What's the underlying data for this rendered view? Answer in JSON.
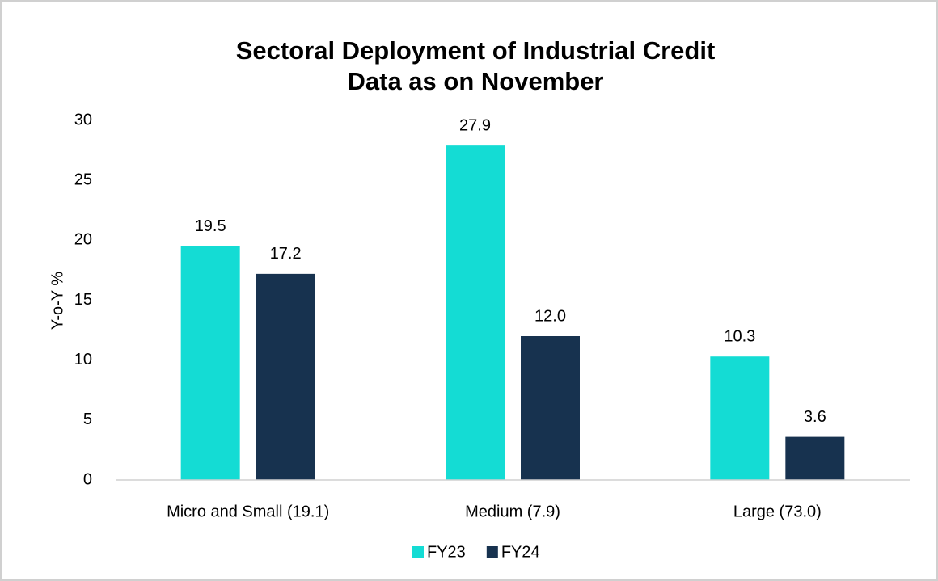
{
  "chart_data": {
    "type": "bar",
    "title": [
      "Sectoral Deployment of Industrial Credit",
      "Data as on November"
    ],
    "y_label": "Y-o-Y %",
    "categories": [
      "Micro and Small (19.1)",
      "Medium (7.9)",
      "Large (73.0)"
    ],
    "series": [
      {
        "name": "FY23",
        "color": "#14dcd4",
        "values": [
          19.5,
          27.9,
          10.3
        ],
        "value_labels": [
          "19.5",
          "27.9",
          "10.3"
        ]
      },
      {
        "name": "FY24",
        "color": "#17324f",
        "values": [
          17.2,
          12.0,
          3.6
        ],
        "value_labels": [
          "17.2",
          "12.0",
          "3.6"
        ]
      }
    ],
    "ylim": [
      0,
      30
    ],
    "yticks": [
      0,
      5,
      10,
      15,
      20,
      25,
      30
    ],
    "grid": false,
    "legend": "bottom"
  }
}
